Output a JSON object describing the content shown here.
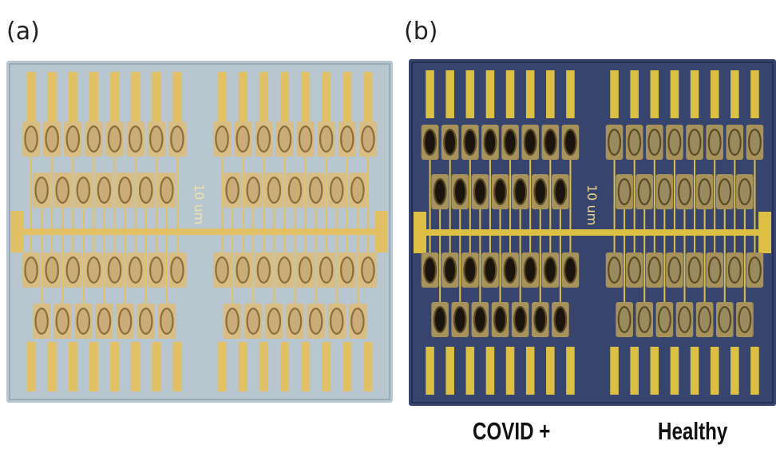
{
  "panels": [
    {
      "label": "(a)",
      "chip_text": "10 um",
      "substrate": "#b8c6cf",
      "pad": "#e2c066",
      "well_fill": "#c9ac78"
    },
    {
      "label": "(b)",
      "chip_text": "10 um",
      "substrate": "#36446e",
      "pad": "#dcc044",
      "well_fill": "#9a8b5e"
    }
  ],
  "captions": {
    "covid": "COVID +",
    "healthy": "Healthy"
  },
  "icons": [
    "electrode-array-chip-photo"
  ]
}
